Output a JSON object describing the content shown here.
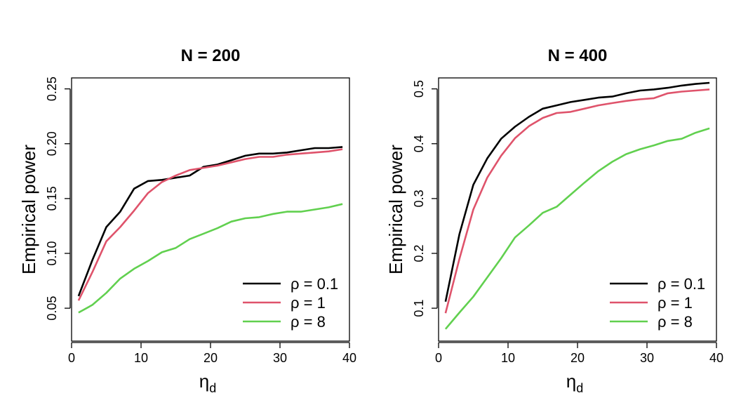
{
  "chart_data": [
    {
      "type": "line",
      "title": "N = 200",
      "xlabel": "η",
      "xlabel_sub": "d",
      "ylabel": "Empirical power",
      "xlim": [
        0,
        40
      ],
      "ylim": [
        0.02,
        0.26
      ],
      "xticks": [
        0,
        10,
        20,
        30,
        40
      ],
      "xtick_labels": [
        "0",
        "10",
        "20",
        "30",
        "40"
      ],
      "yticks": [
        0.05,
        0.1,
        0.15,
        0.2,
        0.25
      ],
      "ytick_labels": [
        "0.05",
        "0.10",
        "0.15",
        "0.20",
        "0.25"
      ],
      "x": [
        1,
        3,
        5,
        7,
        9,
        11,
        13,
        15,
        17,
        19,
        21,
        23,
        25,
        27,
        29,
        31,
        33,
        35,
        37,
        39
      ],
      "legend_position": "bottom-right",
      "series": [
        {
          "name": "ρ = 0.1",
          "color": "#000000",
          "values": [
            0.061,
            0.094,
            0.124,
            0.138,
            0.159,
            0.166,
            0.167,
            0.169,
            0.171,
            0.179,
            0.181,
            0.185,
            0.189,
            0.191,
            0.191,
            0.192,
            0.194,
            0.196,
            0.196,
            0.197
          ]
        },
        {
          "name": "ρ = 1",
          "color": "#DF536B",
          "values": [
            0.057,
            0.083,
            0.111,
            0.124,
            0.139,
            0.155,
            0.165,
            0.171,
            0.176,
            0.178,
            0.18,
            0.183,
            0.186,
            0.188,
            0.188,
            0.19,
            0.191,
            0.192,
            0.193,
            0.195
          ]
        },
        {
          "name": "ρ = 8",
          "color": "#61D04F",
          "values": [
            0.046,
            0.053,
            0.064,
            0.077,
            0.086,
            0.093,
            0.101,
            0.105,
            0.113,
            0.118,
            0.123,
            0.129,
            0.132,
            0.133,
            0.136,
            0.138,
            0.138,
            0.14,
            0.142,
            0.145
          ]
        }
      ]
    },
    {
      "type": "line",
      "title": "N = 400",
      "xlabel": "η",
      "xlabel_sub": "d",
      "ylabel": "Empirical power",
      "xlim": [
        0,
        40
      ],
      "ylim": [
        0.04,
        0.52
      ],
      "xticks": [
        0,
        10,
        20,
        30,
        40
      ],
      "xtick_labels": [
        "0",
        "10",
        "20",
        "30",
        "40"
      ],
      "yticks": [
        0.1,
        0.2,
        0.3,
        0.4,
        0.5
      ],
      "ytick_labels": [
        "0.1",
        "0.2",
        "0.3",
        "0.4",
        "0.5"
      ],
      "x": [
        1,
        3,
        5,
        7,
        9,
        11,
        13,
        15,
        17,
        19,
        21,
        23,
        25,
        27,
        29,
        31,
        33,
        35,
        37,
        39
      ],
      "legend_position": "bottom-right",
      "series": [
        {
          "name": "ρ = 0.1",
          "color": "#000000",
          "values": [
            0.112,
            0.235,
            0.325,
            0.373,
            0.409,
            0.431,
            0.449,
            0.464,
            0.47,
            0.476,
            0.48,
            0.484,
            0.486,
            0.492,
            0.497,
            0.499,
            0.502,
            0.506,
            0.509,
            0.511
          ]
        },
        {
          "name": "ρ = 1",
          "color": "#DF536B",
          "values": [
            0.091,
            0.19,
            0.28,
            0.338,
            0.378,
            0.41,
            0.432,
            0.447,
            0.456,
            0.458,
            0.464,
            0.47,
            0.474,
            0.478,
            0.481,
            0.483,
            0.492,
            0.495,
            0.497,
            0.499
          ]
        },
        {
          "name": "ρ = 8",
          "color": "#61D04F",
          "values": [
            0.062,
            0.092,
            0.121,
            0.156,
            0.191,
            0.229,
            0.251,
            0.274,
            0.285,
            0.307,
            0.329,
            0.35,
            0.367,
            0.381,
            0.39,
            0.397,
            0.405,
            0.409,
            0.42,
            0.428
          ]
        }
      ]
    }
  ]
}
